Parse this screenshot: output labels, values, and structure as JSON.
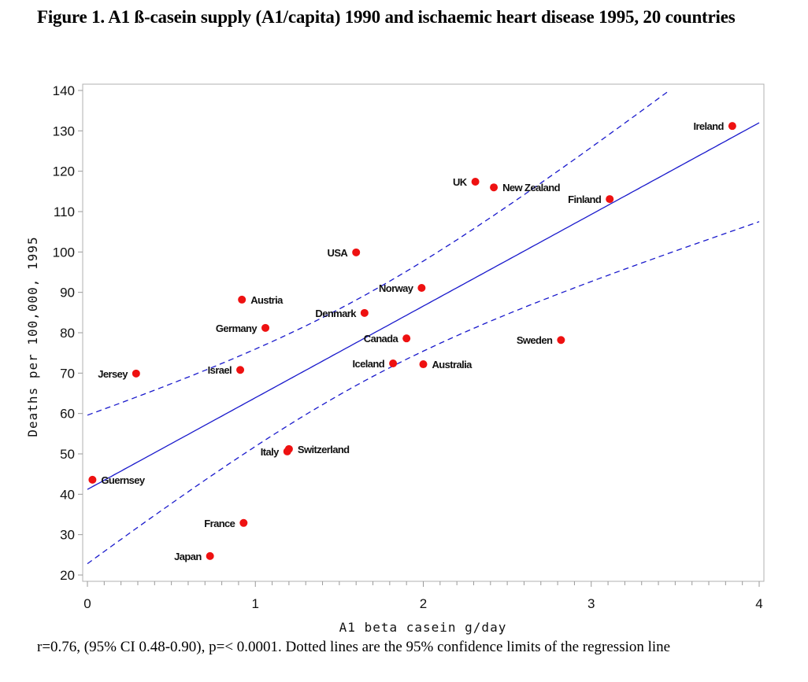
{
  "figure": {
    "title": "Figure 1. A1 ß-casein supply (A1/capita) 1990 and ischaemic heart disease 1995, 20 countries",
    "footnote": "r=0.76, (95% CI 0.48-0.90), p=< 0.0001. Dotted lines are the 95% confidence limits of the regression line"
  },
  "chart_data": {
    "type": "scatter",
    "title": "Figure 1. A1 ß-casein supply (A1/capita) 1990 and ischaemic heart disease 1995, 20 countries",
    "xlabel": "A1 beta casein  g/day",
    "ylabel": "Deaths per 100,000, 1995",
    "xlim": [
      0,
      4
    ],
    "ylim": [
      20,
      140
    ],
    "xticks": [
      0,
      1,
      2,
      3,
      4
    ],
    "xminor_step": 0.1,
    "yticks": [
      20,
      30,
      40,
      50,
      60,
      70,
      80,
      90,
      100,
      110,
      120,
      130,
      140
    ],
    "grid": false,
    "legend": "none",
    "marker_color": "#ee1111",
    "line_color": "#1a1acc",
    "points": [
      {
        "label": "Ireland",
        "x": 3.84,
        "y": 131.2,
        "label_side": "left"
      },
      {
        "label": "UK",
        "x": 2.31,
        "y": 117.4,
        "label_side": "left"
      },
      {
        "label": "New Zealand",
        "x": 2.42,
        "y": 116.0,
        "label_side": "right"
      },
      {
        "label": "Finland",
        "x": 3.11,
        "y": 113.1,
        "label_side": "left"
      },
      {
        "label": "USA",
        "x": 1.6,
        "y": 99.9,
        "label_side": "left"
      },
      {
        "label": "Norway",
        "x": 1.99,
        "y": 91.1,
        "label_side": "left"
      },
      {
        "label": "Austria",
        "x": 0.92,
        "y": 88.2,
        "label_side": "right"
      },
      {
        "label": "Denmark",
        "x": 1.65,
        "y": 84.9,
        "label_side": "left"
      },
      {
        "label": "Germany",
        "x": 1.06,
        "y": 81.2,
        "label_side": "left"
      },
      {
        "label": "Canada",
        "x": 1.9,
        "y": 78.6,
        "label_side": "left"
      },
      {
        "label": "Sweden",
        "x": 2.82,
        "y": 78.2,
        "label_side": "left"
      },
      {
        "label": "Iceland",
        "x": 1.82,
        "y": 72.4,
        "label_side": "left"
      },
      {
        "label": "Australia",
        "x": 2.0,
        "y": 72.2,
        "label_side": "right"
      },
      {
        "label": "Israel",
        "x": 0.91,
        "y": 70.8,
        "label_side": "left"
      },
      {
        "label": "Jersey",
        "x": 0.29,
        "y": 69.9,
        "label_side": "left"
      },
      {
        "label": "Switzerland",
        "x": 1.2,
        "y": 51.2,
        "label_side": "right"
      },
      {
        "label": "Italy",
        "x": 1.19,
        "y": 50.6,
        "label_side": "left"
      },
      {
        "label": "Guernsey",
        "x": 0.03,
        "y": 43.6,
        "label_side": "right"
      },
      {
        "label": "France",
        "x": 0.93,
        "y": 32.9,
        "label_side": "left"
      },
      {
        "label": "Japan",
        "x": 0.73,
        "y": 24.7,
        "label_side": "left"
      }
    ],
    "regression": {
      "intercept": 41.2,
      "slope": 22.7,
      "ci_level": "95%",
      "ci_center_x": 1.62,
      "ci_variance_const": 112,
      "ci_variance_slope": 86.2
    },
    "stats": {
      "r": 0.76,
      "r_ci": [
        0.48,
        0.9
      ],
      "p": "< 0.0001"
    }
  }
}
